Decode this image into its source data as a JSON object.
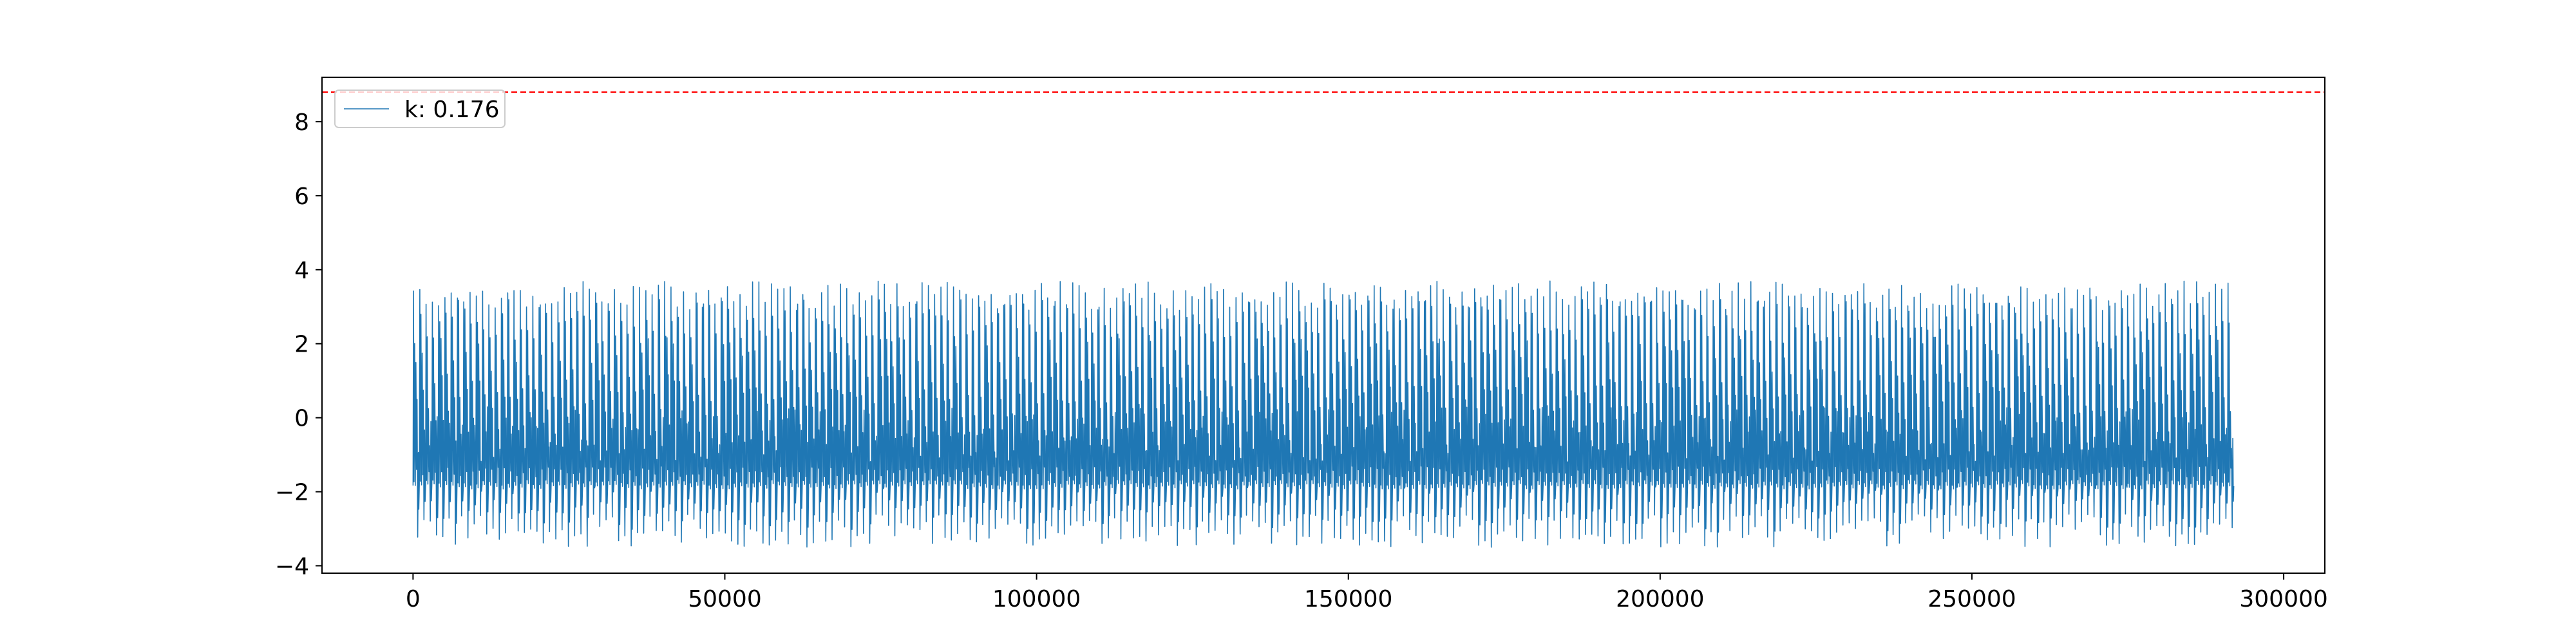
{
  "chart_data": {
    "type": "line",
    "title": "",
    "xlabel": "",
    "ylabel": "",
    "xlim": [
      -14600,
      306600
    ],
    "ylim": [
      -4.2,
      9.2
    ],
    "x_ticks": [
      0,
      50000,
      100000,
      150000,
      200000,
      250000,
      300000
    ],
    "x_tick_labels": [
      "0",
      "50000",
      "100000",
      "150000",
      "200000",
      "250000",
      "300000"
    ],
    "y_ticks": [
      -4,
      -2,
      0,
      2,
      4,
      6,
      8
    ],
    "y_tick_labels": [
      "−4",
      "−2",
      "0",
      "2",
      "4",
      "6",
      "8"
    ],
    "grid": false,
    "legend_location": "upper-left",
    "series": [
      {
        "name": "k: 0.176",
        "color": "#1f77b4",
        "style": "oscillating signal, ~290 cycles",
        "x_range": [
          0,
          292000
        ],
        "cycles": 290,
        "upper_envelope": [
          2.9,
          3.7
        ],
        "lower_envelope": [
          -3.5,
          -2.6
        ],
        "dense_band": [
          -1.85,
          3.2
        ]
      }
    ],
    "threshold_line": {
      "y": 8.8,
      "color": "#ff0000",
      "style": "dashed"
    }
  }
}
